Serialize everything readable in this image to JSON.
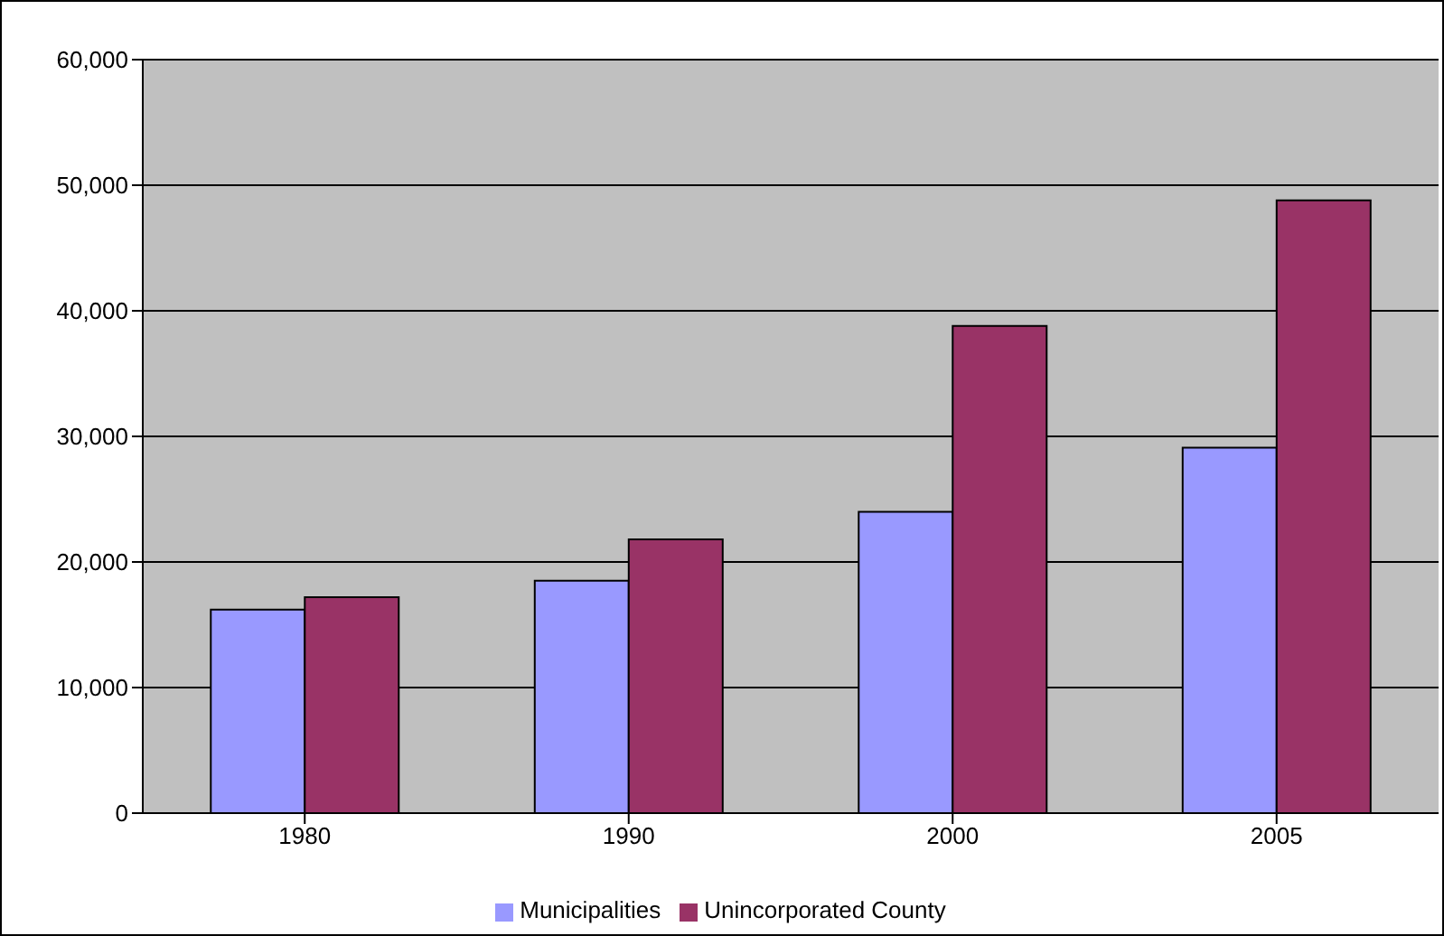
{
  "chart_data": {
    "type": "bar",
    "categories": [
      "1980",
      "1990",
      "2000",
      "2005"
    ],
    "series": [
      {
        "name": "Municipalities",
        "color": "#9999ff",
        "values": [
          16200,
          18500,
          24000,
          29100
        ]
      },
      {
        "name": "Unincorporated County",
        "color": "#993366",
        "values": [
          17200,
          21800,
          38800,
          48800
        ]
      }
    ],
    "ylim": [
      0,
      60000
    ],
    "yticks": [
      0,
      {
        "value": 10000,
        "label": "10,000"
      },
      {
        "value": 20000,
        "label": "20,000"
      },
      {
        "value": 30000,
        "label": "30,000"
      },
      {
        "value": 40000,
        "label": "40,000"
      },
      {
        "value": 50000,
        "label": "50,000"
      },
      {
        "value": 60000,
        "label": "60,000"
      }
    ],
    "grid": "y",
    "legend": "bottom"
  }
}
